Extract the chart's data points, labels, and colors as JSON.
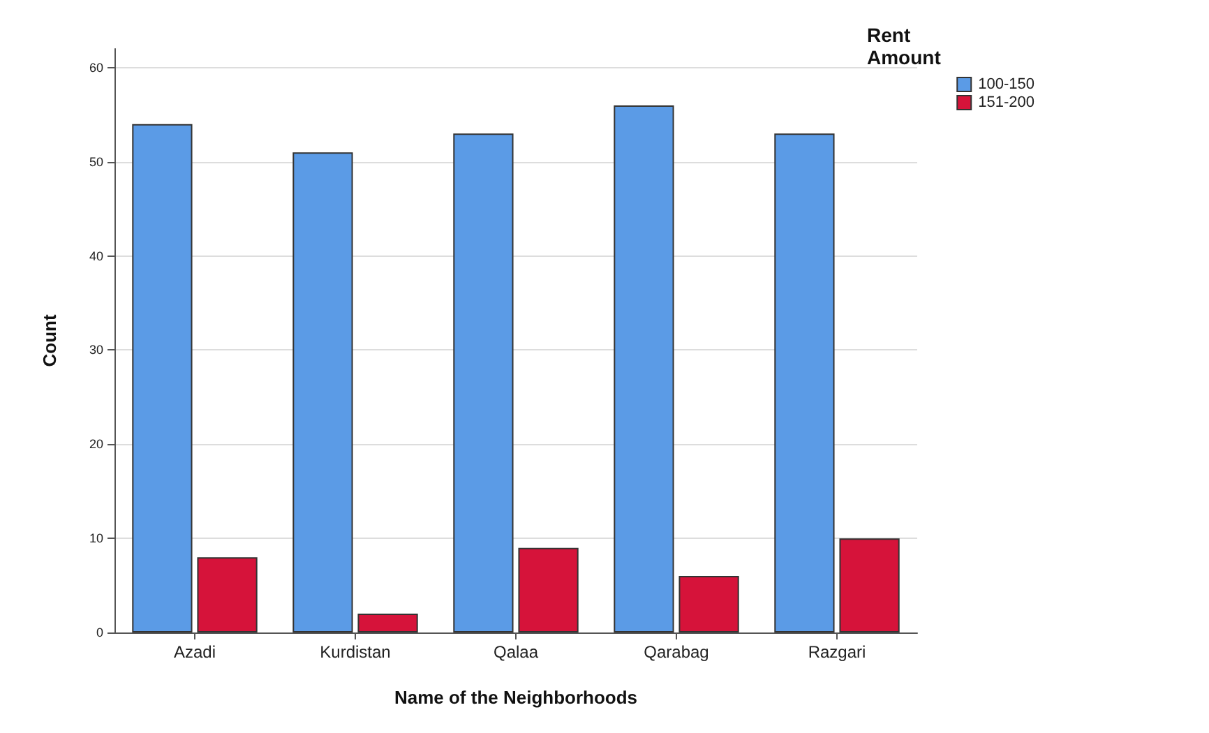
{
  "chart_data": {
    "type": "bar",
    "xlabel": "Name of the Neighborhoods",
    "ylabel": "Count",
    "legend_title": "Rent Amount",
    "categories": [
      "Azadi",
      "Kurdistan",
      "Qalaa",
      "Qarabag",
      "Razgari"
    ],
    "series": [
      {
        "name": "100-150",
        "color": "#5b9be6",
        "values": [
          54,
          51,
          53,
          56,
          53
        ]
      },
      {
        "name": "151-200",
        "color": "#d6133a",
        "values": [
          8,
          2,
          9,
          6,
          10
        ]
      }
    ],
    "ylim": [
      0,
      62
    ],
    "yticks": [
      0,
      10,
      20,
      30,
      40,
      50,
      60
    ],
    "grid": "y",
    "legend": "top right"
  }
}
